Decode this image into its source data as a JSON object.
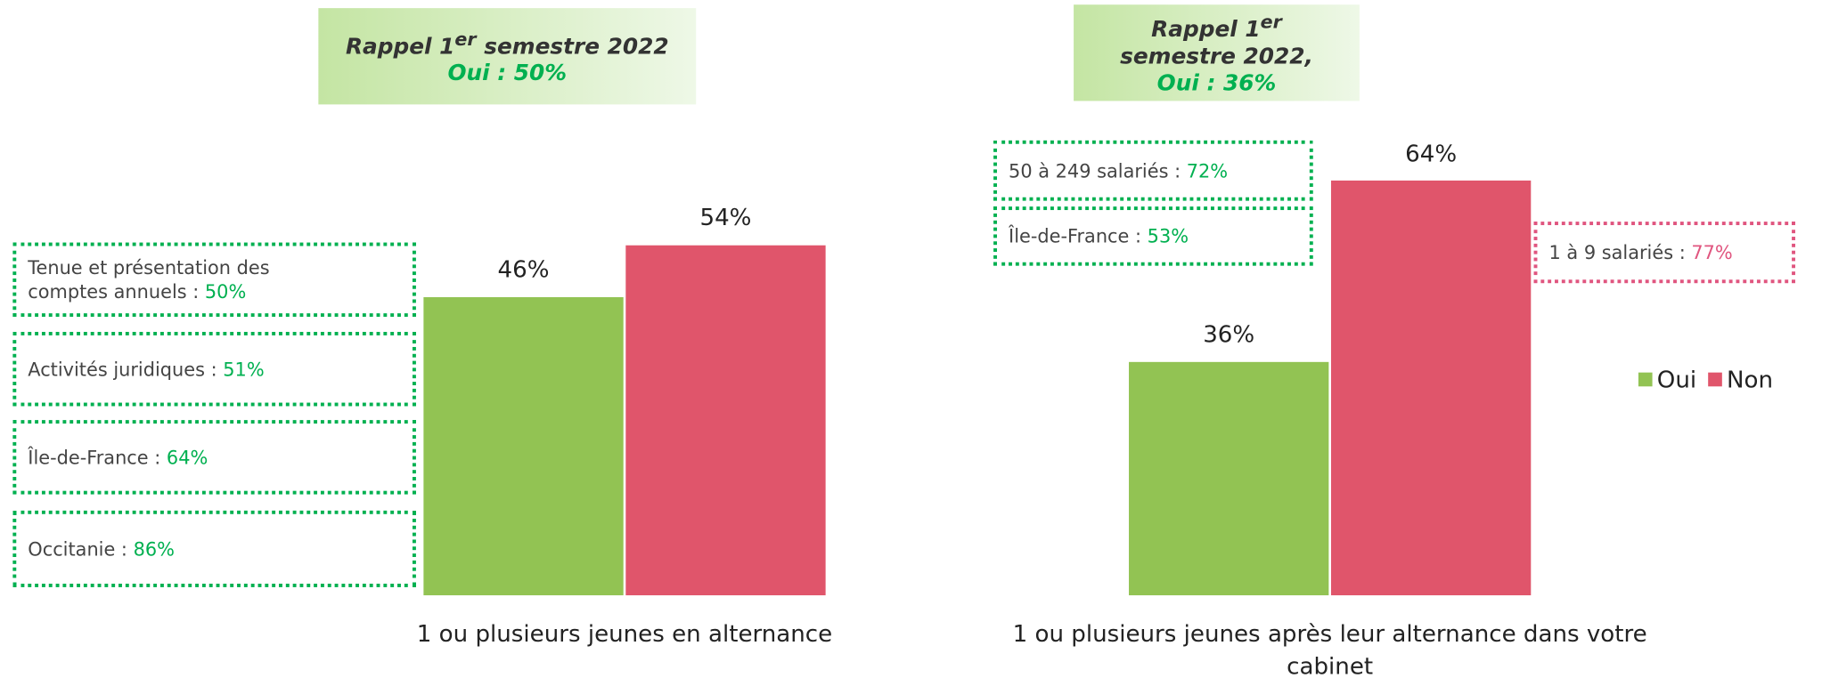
{
  "chart_data": {
    "type": "bar",
    "categories": [
      "1 ou plusieurs jeunes en alternance",
      "1 ou plusieurs jeunes après leur alternance dans votre cabinet"
    ],
    "series": [
      {
        "name": "Oui",
        "color": "#92c353",
        "values": [
          46,
          36
        ],
        "value_labels": [
          "46%",
          "36%"
        ]
      },
      {
        "name": "Non",
        "color": "#e0556b",
        "values": [
          54,
          64
        ],
        "value_labels": [
          "54%",
          "64%"
        ]
      }
    ],
    "legend": "right",
    "recalls": [
      {
        "head": "Rappel 1",
        "sup": "er",
        "tail": " semestre 2022",
        "oui": "Oui : 50%"
      },
      {
        "head": "Rappel 1",
        "sup": "er",
        "tail": "semestre 2022,",
        "oui": "Oui : 36%"
      }
    ],
    "callouts": [
      {
        "text": "Tenue et présentation des comptes annuels : ",
        "value": "50%",
        "color": "#00b050"
      },
      {
        "text": "Activités juridiques : ",
        "value": "51%",
        "color": "#00b050"
      },
      {
        "text": "Île-de-France : ",
        "value": "64%",
        "color": "#00b050"
      },
      {
        "text": "Occitanie : ",
        "value": "86%",
        "color": "#00b050"
      },
      {
        "text": "50 à 249 salariés : ",
        "value": "72%",
        "color": "#00b050"
      },
      {
        "text": "Île-de-France : ",
        "value": "53%",
        "color": "#00b050"
      },
      {
        "text": "1 à 9 salariés : ",
        "value": "77%",
        "color": "#e0557f"
      }
    ]
  }
}
